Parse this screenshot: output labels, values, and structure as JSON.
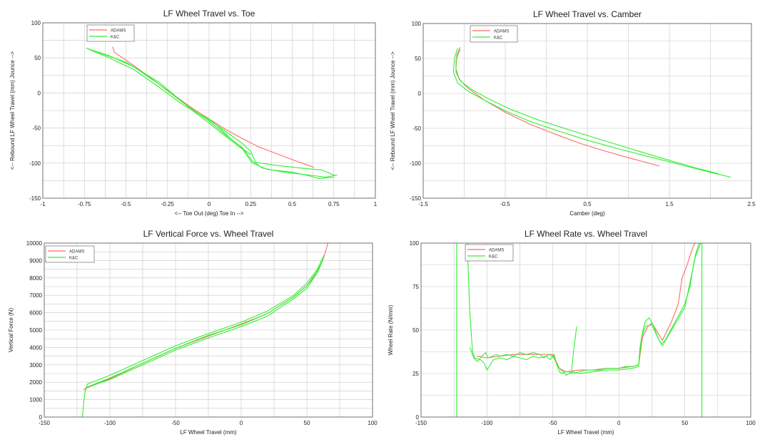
{
  "colors": {
    "ADAMS": "#ff6b6b",
    "K&C": "#33ee33"
  },
  "chart_data": [
    {
      "type": "line",
      "title": "LF Wheel Travel vs. Toe",
      "xlabel": "<-- Toe Out (deg)  Toe In -->",
      "ylabel": "<-- Rebound LF Wheel Travel (mm) Jounce -->",
      "xlim": [
        -1,
        1
      ],
      "ylim": [
        -150,
        100
      ],
      "xticks": [
        "-1",
        "-0.75",
        "-0.5",
        "-0.25",
        "0",
        "0.25",
        "0.5",
        "0.75",
        "1"
      ],
      "xtick_values": [
        -1,
        -0.75,
        -0.5,
        -0.25,
        0,
        0.25,
        0.5,
        0.75,
        1
      ],
      "yticks": [
        "-150",
        "-100",
        "-50",
        "0",
        "50",
        "100"
      ],
      "ytick_values": [
        -150,
        -100,
        -50,
        0,
        50,
        100
      ],
      "xgrid": [
        -1,
        -0.875,
        -0.75,
        -0.625,
        -0.5,
        -0.375,
        -0.25,
        -0.125,
        0,
        0.125,
        0.25,
        0.375,
        0.5,
        0.625,
        0.75,
        0.875,
        1
      ],
      "ygrid": [
        -150,
        -125,
        -100,
        -75,
        -50,
        -25,
        0,
        25,
        50,
        75,
        100
      ],
      "grid": true,
      "legend": [
        "ADAMS",
        "K&C"
      ],
      "legend_position": "top-left",
      "series": [
        {
          "name": "ADAMS",
          "x": [
            -0.58,
            -0.57,
            -0.5,
            -0.4,
            -0.3,
            -0.2,
            -0.1,
            0,
            0.1,
            0.2,
            0.3,
            0.4,
            0.5,
            0.63
          ],
          "y": [
            66,
            58,
            47,
            30,
            12,
            -5,
            -22,
            -37,
            -52,
            -65,
            -77,
            -86,
            -95,
            -106
          ]
        },
        {
          "name": "K&C",
          "x": [
            -0.74,
            -0.6,
            -0.45,
            -0.3,
            -0.15,
            0,
            0.1,
            0.2,
            0.26,
            0.32,
            0.45,
            0.6,
            0.7,
            0.77
          ],
          "y": [
            64,
            53,
            37,
            12,
            -15,
            -40,
            -60,
            -78,
            -97,
            -107,
            -113,
            -117,
            -120,
            -117
          ]
        },
        {
          "name": "K&C",
          "x": [
            -0.72,
            -0.6,
            -0.45,
            -0.3,
            -0.15,
            -0.02,
            0.1,
            0.2,
            0.25,
            0.28,
            0.4,
            0.55,
            0.68,
            0.76
          ],
          "y": [
            62,
            50,
            33,
            8,
            -18,
            -35,
            -55,
            -72,
            -83,
            -99,
            -103,
            -107,
            -110,
            -118
          ]
        },
        {
          "name": "K&C",
          "x": [
            -0.73,
            -0.5,
            -0.3,
            -0.1,
            0,
            0.1,
            0.2,
            0.26,
            0.35,
            0.5,
            0.6,
            0.66,
            0.75
          ],
          "y": [
            63,
            44,
            15,
            -25,
            -43,
            -62,
            -80,
            -100,
            -109,
            -113,
            -118,
            -122,
            -120
          ]
        },
        {
          "name": "K&C",
          "x": [
            -0.01,
            0.05,
            0.12,
            0.2,
            0.25
          ],
          "y": [
            -35,
            -47,
            -63,
            -79,
            -88
          ]
        }
      ]
    },
    {
      "type": "line",
      "title": "LF Wheel Travel vs. Camber",
      "xlabel": "Camber (deg)",
      "ylabel": "<-- Rebound LF Wheel Travel (mm) Jounce -->",
      "xlim": [
        -1.5,
        2.5
      ],
      "ylim": [
        -150,
        100
      ],
      "xticks": [
        "-1.5",
        "-0.5",
        "0.5",
        "1.5",
        "2.5"
      ],
      "xtick_values": [
        -1.5,
        -0.5,
        0.5,
        1.5,
        2.5
      ],
      "yticks": [
        "-150",
        "-100",
        "-50",
        "0",
        "50",
        "100"
      ],
      "ytick_values": [
        -150,
        -100,
        -50,
        0,
        50,
        100
      ],
      "xgrid": [
        -1.5,
        -1,
        -0.5,
        0,
        0.5,
        1,
        1.5,
        2,
        2.5
      ],
      "ygrid": [
        -150,
        -125,
        -100,
        -75,
        -50,
        -25,
        0,
        25,
        50,
        75,
        100
      ],
      "grid": true,
      "legend": [
        "ADAMS",
        "K&C"
      ],
      "legend_position": "top-left",
      "series": [
        {
          "name": "ADAMS",
          "x": [
            -1.05,
            -1.09,
            -1.1,
            -1.06,
            -0.95,
            -0.75,
            -0.5,
            -0.2,
            0.1,
            0.4,
            0.7,
            1.0,
            1.38
          ],
          "y": [
            66,
            55,
            35,
            20,
            7,
            -10,
            -27,
            -44,
            -58,
            -71,
            -82,
            -92,
            -104
          ]
        },
        {
          "name": "K&C",
          "x": [
            -1.08,
            -1.12,
            -1.13,
            -1.08,
            -0.95,
            -0.75,
            -0.5,
            -0.2,
            0.1,
            0.5,
            0.9,
            1.3,
            1.7,
            2.0,
            2.25
          ],
          "y": [
            65,
            50,
            30,
            15,
            3,
            -10,
            -25,
            -40,
            -52,
            -67,
            -80,
            -92,
            -104,
            -113,
            -120
          ]
        },
        {
          "name": "K&C",
          "x": [
            -1.05,
            -1.1,
            -1.1,
            -1.04,
            -0.9,
            -0.7,
            -0.45,
            -0.1,
            0.3,
            0.8,
            1.3,
            1.8,
            2.1
          ],
          "y": [
            63,
            48,
            30,
            17,
            5,
            -8,
            -22,
            -38,
            -53,
            -71,
            -89,
            -106,
            -115
          ]
        }
      ]
    },
    {
      "type": "line",
      "title": "LF Vertical Force vs. Wheel Travel",
      "xlabel": "LF Wheel Travel (mm)",
      "ylabel": "Vertical Force (N)",
      "xlim": [
        -150,
        100
      ],
      "ylim": [
        0,
        10000
      ],
      "xticks": [
        "-150",
        "-100",
        "-50",
        "0",
        "50",
        "100"
      ],
      "xtick_values": [
        -150,
        -100,
        -50,
        0,
        50,
        100
      ],
      "yticks": [
        "0",
        "1000",
        "2000",
        "3000",
        "4000",
        "5000",
        "6000",
        "7000",
        "8000",
        "9000",
        "10000"
      ],
      "ytick_values": [
        0,
        1000,
        2000,
        3000,
        4000,
        5000,
        6000,
        7000,
        8000,
        9000,
        10000
      ],
      "xgrid": [
        -150,
        -125,
        -100,
        -75,
        -50,
        -25,
        0,
        25,
        50,
        75,
        100
      ],
      "ygrid": [
        0,
        500,
        1000,
        1500,
        2000,
        2500,
        3000,
        3500,
        4000,
        4500,
        5000,
        5500,
        6000,
        6500,
        7000,
        7500,
        8000,
        8500,
        9000,
        9500,
        10000
      ],
      "grid": true,
      "legend": [
        "ADAMS",
        "K&C"
      ],
      "legend_position": "top-left",
      "series": [
        {
          "name": "ADAMS",
          "x": [
            -120,
            -100,
            -75,
            -50,
            -25,
            0,
            20,
            40,
            50,
            58,
            62,
            65,
            66
          ],
          "y": [
            1600,
            2200,
            3100,
            3950,
            4650,
            5350,
            5950,
            6900,
            7550,
            8300,
            9000,
            9700,
            10000
          ]
        },
        {
          "name": "K&C",
          "x": [
            -121,
            -120,
            -119,
            -118,
            -100,
            -75,
            -50,
            -25,
            0,
            20,
            40,
            50,
            58,
            63
          ],
          "y": [
            0,
            800,
            1400,
            1700,
            2150,
            3000,
            3850,
            4550,
            5200,
            5800,
            6800,
            7400,
            8300,
            9200
          ]
        },
        {
          "name": "K&C",
          "x": [
            -119,
            -117,
            -100,
            -75,
            -50,
            -25,
            0,
            20,
            40,
            50,
            58,
            63
          ],
          "y": [
            1500,
            1900,
            2400,
            3250,
            4100,
            4800,
            5450,
            6100,
            7000,
            7700,
            8500,
            9300
          ]
        },
        {
          "name": "K&C",
          "x": [
            -118,
            -100,
            -75,
            -50,
            -25,
            0,
            20,
            40,
            50,
            58,
            62
          ],
          "y": [
            1700,
            2250,
            3100,
            3950,
            4700,
            5300,
            5950,
            6900,
            7550,
            8400,
            9000
          ]
        }
      ]
    },
    {
      "type": "line",
      "title": "LF Wheel Rate vs. Wheel Travel",
      "xlabel": "LF Wheel Travel (mm)",
      "ylabel": "Wheel Rate (N/mm)",
      "xlim": [
        -150,
        100
      ],
      "ylim": [
        0,
        100
      ],
      "xticks": [
        "-150",
        "-100",
        "-50",
        "0",
        "50",
        "100"
      ],
      "xtick_values": [
        -150,
        -100,
        -50,
        0,
        50,
        100
      ],
      "yticks": [
        "0",
        "25",
        "50",
        "75",
        "100"
      ],
      "ytick_values": [
        0,
        25,
        50,
        75,
        100
      ],
      "xgrid": [
        -150,
        -125,
        -100,
        -75,
        -50,
        -25,
        0,
        25,
        50,
        75,
        100
      ],
      "ygrid": [
        0,
        12.5,
        25,
        37.5,
        50,
        62.5,
        75,
        87.5,
        100
      ],
      "grid": true,
      "legend": [
        "ADAMS",
        "K&C"
      ],
      "legend_position": "top-left",
      "series": [
        {
          "name": "ADAMS",
          "x": [
            -108,
            -100,
            -80,
            -60,
            -50,
            -45,
            -40,
            -30,
            -20,
            -10,
            0,
            10,
            15,
            18,
            22,
            25,
            30,
            33,
            40,
            45,
            48,
            52,
            55,
            57,
            58
          ],
          "y": [
            35,
            34,
            36,
            36,
            36,
            28,
            26,
            27,
            27,
            28,
            28,
            29,
            30,
            46,
            52,
            54,
            48,
            44,
            55,
            65,
            80,
            88,
            95,
            99,
            100
          ]
        },
        {
          "name": "K&C",
          "x": [
            -123,
            -123
          ],
          "y": [
            0,
            100
          ]
        },
        {
          "name": "K&C",
          "x": [
            -115,
            -113,
            -111,
            -109,
            -107,
            -104,
            -101,
            -99,
            -96,
            -93,
            -90,
            -85,
            -80,
            -75,
            -70,
            -65,
            -60,
            -57,
            -55,
            -53,
            -51,
            -49,
            -47,
            -45,
            -43,
            -41,
            -38,
            -35,
            -30,
            -25,
            -20,
            -15,
            -10,
            -5,
            0,
            5,
            10,
            15,
            16,
            18,
            20,
            23,
            26,
            29,
            32,
            35,
            40,
            45,
            50,
            54,
            56,
            58,
            60,
            61,
            62
          ],
          "y": [
            100,
            60,
            38,
            33,
            32,
            35,
            37,
            34,
            35,
            36,
            35,
            36,
            35,
            37,
            36,
            37,
            36,
            34,
            35,
            36,
            35,
            36,
            30,
            26,
            25,
            26,
            26,
            25,
            26,
            27,
            27,
            27,
            28,
            28,
            28,
            29,
            29,
            30,
            40,
            49,
            55,
            57,
            53,
            47,
            42,
            44,
            51,
            58,
            65,
            75,
            85,
            93,
            98,
            100,
            100
          ]
        },
        {
          "name": "K&C",
          "x": [
            -113,
            -110,
            -105,
            -102,
            -100,
            -95,
            -90,
            -85,
            -80,
            -75,
            -70,
            -65,
            -60,
            -55,
            -52,
            -50,
            -48,
            -46,
            -44,
            -42,
            -40,
            -35,
            -30,
            -20,
            -10,
            0,
            10,
            15,
            17,
            20,
            25,
            30,
            33,
            40,
            50,
            58,
            62
          ],
          "y": [
            40,
            34,
            33,
            31,
            27,
            33,
            34,
            33,
            35,
            34,
            33,
            35,
            34,
            35,
            33,
            35,
            32,
            29,
            27,
            26,
            24,
            26,
            25,
            26,
            27,
            27,
            28,
            29,
            45,
            52,
            53,
            45,
            41,
            50,
            63,
            92,
            100
          ]
        },
        {
          "name": "K&C",
          "x": [
            -36,
            -35,
            -34,
            -33,
            -32
          ],
          "y": [
            26,
            33,
            40,
            46,
            52
          ]
        },
        {
          "name": "K&C",
          "x": [
            63,
            63
          ],
          "y": [
            0,
            100
          ]
        }
      ]
    }
  ]
}
